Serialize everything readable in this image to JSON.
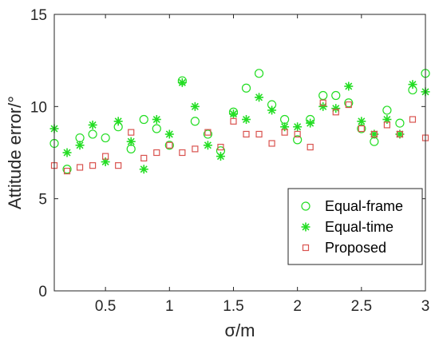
{
  "chart_data": {
    "type": "scatter",
    "title": "",
    "xlabel": "σ/m",
    "ylabel": "Attitude error/°",
    "xlim": [
      0.1,
      3.0
    ],
    "ylim": [
      0,
      15
    ],
    "x_ticks": [
      0.5,
      1,
      1.5,
      2,
      2.5,
      3
    ],
    "x_tick_labels": [
      "0.5",
      "1",
      "1.5",
      "2",
      "2.5",
      "3"
    ],
    "y_ticks": [
      0,
      5,
      10,
      15
    ],
    "y_tick_labels": [
      "0",
      "5",
      "10",
      "15"
    ],
    "grid": false,
    "legend_position": "bottom-right",
    "x": [
      0.1,
      0.2,
      0.3,
      0.4,
      0.5,
      0.6,
      0.7,
      0.8,
      0.9,
      1.0,
      1.1,
      1.2,
      1.3,
      1.4,
      1.5,
      1.6,
      1.7,
      1.8,
      1.9,
      2.0,
      2.1,
      2.2,
      2.3,
      2.4,
      2.5,
      2.6,
      2.7,
      2.8,
      2.9,
      3.0
    ],
    "series": [
      {
        "name": "Equal-frame",
        "marker": "circle",
        "color": "#22dd22",
        "values": [
          8.0,
          6.6,
          8.3,
          8.5,
          8.3,
          8.9,
          7.7,
          9.3,
          8.8,
          7.9,
          11.4,
          9.2,
          8.5,
          7.6,
          9.7,
          11.0,
          11.8,
          10.1,
          9.3,
          8.2,
          9.3,
          10.6,
          10.6,
          10.2,
          8.8,
          8.1,
          9.8,
          9.1,
          10.9,
          11.8
        ]
      },
      {
        "name": "Equal-time",
        "marker": "asterisk",
        "color": "#22dd22",
        "values": [
          8.8,
          7.5,
          7.9,
          9.0,
          7.0,
          9.2,
          8.1,
          6.6,
          9.3,
          8.5,
          11.3,
          10.0,
          7.9,
          7.3,
          9.6,
          9.3,
          10.5,
          9.8,
          8.9,
          8.9,
          9.1,
          10.0,
          9.9,
          11.1,
          9.2,
          8.5,
          9.3,
          8.5,
          11.2,
          10.8
        ]
      },
      {
        "name": "Proposed",
        "marker": "square",
        "color": "#d9534f",
        "values": [
          6.8,
          6.5,
          6.7,
          6.8,
          7.3,
          6.8,
          8.6,
          7.2,
          7.5,
          7.9,
          7.5,
          7.7,
          8.6,
          7.8,
          9.2,
          8.5,
          8.5,
          8.0,
          8.6,
          8.5,
          7.8,
          10.2,
          9.7,
          10.1,
          8.8,
          8.5,
          9.0,
          8.5,
          9.3,
          8.3
        ]
      }
    ]
  }
}
